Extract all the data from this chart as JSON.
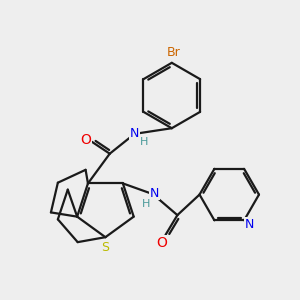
{
  "background_color": "#eeeeee",
  "bond_color": "#1a1a1a",
  "atom_colors": {
    "N": "#0000ee",
    "O": "#ee0000",
    "S": "#bbbb00",
    "Br": "#cc6600",
    "H": "#4a9a9a",
    "C": "#1a1a1a"
  },
  "figsize": [
    3.0,
    3.0
  ],
  "dpi": 100
}
